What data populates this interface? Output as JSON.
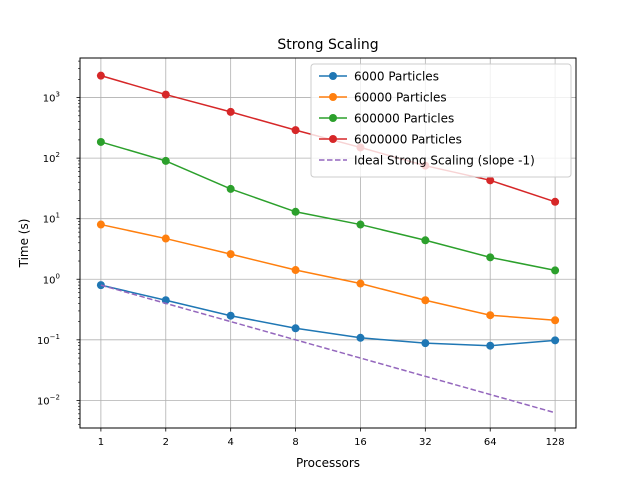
{
  "chart_data": {
    "type": "line",
    "title": "Strong Scaling",
    "xlabel": "Processors",
    "ylabel": "Time (s)",
    "x_scale": "log2",
    "y_scale": "log10",
    "x": [
      1,
      2,
      4,
      8,
      16,
      32,
      64,
      128
    ],
    "x_tick_labels": [
      "1",
      "2",
      "4",
      "8",
      "16",
      "32",
      "64",
      "128"
    ],
    "y_ticks": [
      {
        "value": 0.01,
        "base": "10",
        "exp": "−2"
      },
      {
        "value": 0.1,
        "base": "10",
        "exp": "−1"
      },
      {
        "value": 1,
        "base": "10",
        "exp": "0"
      },
      {
        "value": 10,
        "base": "10",
        "exp": "1"
      },
      {
        "value": 100,
        "base": "10",
        "exp": "2"
      },
      {
        "value": 1000,
        "base": "10",
        "exp": "3"
      }
    ],
    "xlim": [
      0.8,
      160
    ],
    "ylim": [
      0.0035,
      4500
    ],
    "grid": true,
    "legend_position": "top-right",
    "series": [
      {
        "name": "6000 Particles",
        "color": "#1f77b4",
        "style": "solid-marker",
        "values": [
          0.8,
          0.45,
          0.25,
          0.155,
          0.108,
          0.088,
          0.08,
          0.098
        ]
      },
      {
        "name": "60000 Particles",
        "color": "#ff7f0e",
        "style": "solid-marker",
        "values": [
          8.0,
          4.7,
          2.6,
          1.42,
          0.85,
          0.45,
          0.255,
          0.21
        ]
      },
      {
        "name": "600000 Particles",
        "color": "#2ca02c",
        "style": "solid-marker",
        "values": [
          185,
          90,
          31,
          13,
          8.0,
          4.4,
          2.3,
          1.4
        ]
      },
      {
        "name": "6000000 Particles",
        "color": "#d62728",
        "style": "solid-marker",
        "values": [
          2300,
          1120,
          580,
          290,
          150,
          75,
          43,
          19
        ]
      },
      {
        "name": "Ideal Strong Scaling (slope -1)",
        "color": "#9467bd",
        "style": "dashed",
        "values": [
          0.8,
          0.4,
          0.2,
          0.1,
          0.05,
          0.025,
          0.0125,
          0.00625
        ]
      }
    ]
  }
}
